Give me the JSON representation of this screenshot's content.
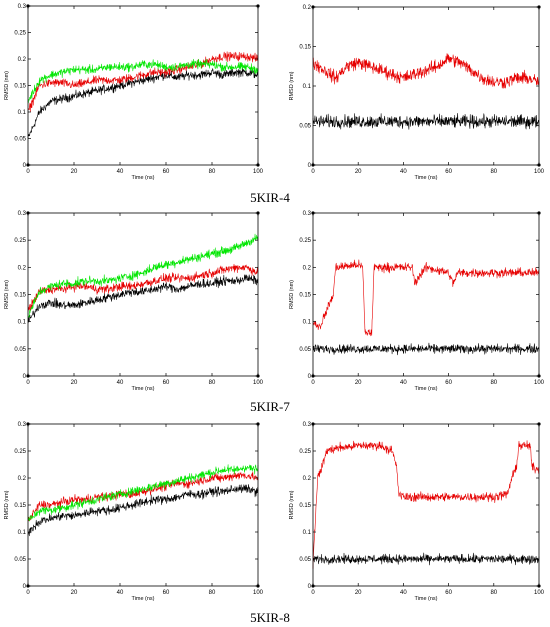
{
  "captions": [
    "5KIR-4",
    "5KIR-7",
    "5KIR-8"
  ],
  "colors": {
    "black": "#000000",
    "red": "#e60000",
    "green": "#00e600"
  },
  "chart_data": [
    {
      "type": "line",
      "xlabel": "Time (ns)",
      "ylabel": "RMSD (nm)",
      "xlim": [
        0,
        100
      ],
      "ylim": [
        0,
        0.3
      ],
      "xticks": [
        0,
        20,
        40,
        60,
        80,
        100
      ],
      "yticks": [
        0,
        0.05,
        0.1,
        0.15,
        0.2,
        0.25,
        0.3
      ],
      "series": [
        {
          "color": "black",
          "x": [
            0,
            5,
            10,
            15,
            20,
            25,
            30,
            35,
            40,
            45,
            50,
            55,
            60,
            65,
            70,
            75,
            80,
            85,
            90,
            95,
            100
          ],
          "y": [
            0.05,
            0.1,
            0.12,
            0.125,
            0.13,
            0.135,
            0.14,
            0.145,
            0.15,
            0.155,
            0.16,
            0.165,
            0.17,
            0.165,
            0.17,
            0.17,
            0.175,
            0.17,
            0.175,
            0.175,
            0.17
          ],
          "noise": 0.012
        },
        {
          "color": "red",
          "x": [
            0,
            5,
            10,
            15,
            20,
            25,
            30,
            35,
            40,
            45,
            50,
            55,
            60,
            65,
            70,
            75,
            80,
            85,
            90,
            95,
            100
          ],
          "y": [
            0.1,
            0.15,
            0.155,
            0.155,
            0.15,
            0.155,
            0.16,
            0.16,
            0.16,
            0.165,
            0.17,
            0.175,
            0.175,
            0.18,
            0.185,
            0.19,
            0.2,
            0.205,
            0.205,
            0.205,
            0.2
          ],
          "noise": 0.012
        },
        {
          "color": "green",
          "x": [
            0,
            5,
            10,
            15,
            20,
            25,
            30,
            35,
            40,
            45,
            50,
            55,
            60,
            65,
            70,
            75,
            80,
            85,
            90,
            95,
            100
          ],
          "y": [
            0.12,
            0.16,
            0.17,
            0.175,
            0.18,
            0.18,
            0.18,
            0.185,
            0.185,
            0.185,
            0.19,
            0.19,
            0.185,
            0.185,
            0.19,
            0.19,
            0.19,
            0.185,
            0.185,
            0.185,
            0.18
          ],
          "noise": 0.012
        }
      ]
    },
    {
      "type": "line",
      "xlabel": "Time (ns)",
      "ylabel": "RMSD (nm)",
      "xlim": [
        0,
        100
      ],
      "ylim": [
        0,
        0.2
      ],
      "xticks": [
        0,
        20,
        40,
        60,
        80,
        100
      ],
      "yticks": [
        0,
        0.05,
        0.1,
        0.15,
        0.2
      ],
      "series": [
        {
          "color": "black",
          "x": [
            0,
            10,
            20,
            30,
            40,
            50,
            60,
            70,
            80,
            90,
            100
          ],
          "y": [
            0.055,
            0.055,
            0.055,
            0.055,
            0.055,
            0.055,
            0.055,
            0.055,
            0.055,
            0.055,
            0.055
          ],
          "noise": 0.012
        },
        {
          "color": "red",
          "x": [
            0,
            5,
            10,
            15,
            20,
            25,
            30,
            35,
            40,
            45,
            50,
            55,
            60,
            65,
            70,
            75,
            80,
            85,
            90,
            95,
            100
          ],
          "y": [
            0.13,
            0.12,
            0.11,
            0.125,
            0.13,
            0.125,
            0.12,
            0.115,
            0.11,
            0.115,
            0.12,
            0.125,
            0.135,
            0.13,
            0.12,
            0.11,
            0.105,
            0.105,
            0.11,
            0.11,
            0.105
          ],
          "noise": 0.012
        }
      ]
    },
    {
      "type": "line",
      "xlabel": "Time (ns)",
      "ylabel": "RMSD (nm)",
      "xlim": [
        0,
        100
      ],
      "ylim": [
        0,
        0.3
      ],
      "xticks": [
        0,
        20,
        40,
        60,
        80,
        100
      ],
      "yticks": [
        0,
        0.05,
        0.1,
        0.15,
        0.2,
        0.25,
        0.3
      ],
      "series": [
        {
          "color": "black",
          "x": [
            0,
            5,
            10,
            15,
            20,
            25,
            30,
            35,
            40,
            45,
            50,
            55,
            60,
            65,
            70,
            75,
            80,
            85,
            90,
            95,
            100
          ],
          "y": [
            0.1,
            0.13,
            0.135,
            0.13,
            0.13,
            0.135,
            0.14,
            0.145,
            0.15,
            0.155,
            0.155,
            0.16,
            0.165,
            0.16,
            0.165,
            0.17,
            0.17,
            0.175,
            0.175,
            0.18,
            0.175
          ],
          "noise": 0.012
        },
        {
          "color": "red",
          "x": [
            0,
            5,
            10,
            15,
            20,
            25,
            30,
            35,
            40,
            45,
            50,
            55,
            60,
            65,
            70,
            75,
            80,
            85,
            90,
            95,
            100
          ],
          "y": [
            0.12,
            0.155,
            0.16,
            0.16,
            0.165,
            0.165,
            0.16,
            0.16,
            0.165,
            0.165,
            0.17,
            0.175,
            0.18,
            0.18,
            0.18,
            0.185,
            0.19,
            0.195,
            0.2,
            0.2,
            0.19
          ],
          "noise": 0.012
        },
        {
          "color": "green",
          "x": [
            0,
            5,
            10,
            15,
            20,
            25,
            30,
            35,
            40,
            45,
            50,
            55,
            60,
            65,
            70,
            75,
            80,
            85,
            90,
            95,
            100
          ],
          "y": [
            0.11,
            0.155,
            0.165,
            0.17,
            0.17,
            0.175,
            0.175,
            0.175,
            0.18,
            0.185,
            0.19,
            0.2,
            0.205,
            0.21,
            0.215,
            0.22,
            0.225,
            0.23,
            0.235,
            0.245,
            0.255
          ],
          "noise": 0.012
        }
      ]
    },
    {
      "type": "line",
      "xlabel": "Time (ns)",
      "ylabel": "RMSD (nm)",
      "xlim": [
        0,
        100
      ],
      "ylim": [
        0,
        0.3
      ],
      "xticks": [
        0,
        20,
        40,
        60,
        80,
        100
      ],
      "yticks": [
        0,
        0.05,
        0.1,
        0.15,
        0.2,
        0.25,
        0.3
      ],
      "series": [
        {
          "color": "black",
          "x": [
            0,
            10,
            20,
            30,
            40,
            50,
            60,
            70,
            80,
            90,
            100
          ],
          "y": [
            0.05,
            0.05,
            0.05,
            0.05,
            0.05,
            0.05,
            0.05,
            0.05,
            0.05,
            0.05,
            0.05
          ],
          "noise": 0.012
        },
        {
          "color": "red",
          "x": [
            0,
            3,
            6,
            9,
            10,
            20,
            22,
            23,
            26,
            27,
            40,
            44,
            45,
            48,
            50,
            60,
            62,
            64,
            70,
            80,
            90,
            100
          ],
          "y": [
            0.1,
            0.09,
            0.12,
            0.15,
            0.2,
            0.205,
            0.2,
            0.08,
            0.08,
            0.2,
            0.2,
            0.2,
            0.17,
            0.19,
            0.2,
            0.19,
            0.17,
            0.19,
            0.19,
            0.19,
            0.19,
            0.19
          ],
          "noise": 0.012
        }
      ]
    },
    {
      "type": "line",
      "xlabel": "Time (ns)",
      "ylabel": "RMSD (nm)",
      "xlim": [
        0,
        100
      ],
      "ylim": [
        0,
        0.3
      ],
      "xticks": [
        0,
        20,
        40,
        60,
        80,
        100
      ],
      "yticks": [
        0,
        0.05,
        0.1,
        0.15,
        0.2,
        0.25,
        0.3
      ],
      "series": [
        {
          "color": "black",
          "x": [
            0,
            5,
            10,
            15,
            20,
            25,
            30,
            35,
            40,
            45,
            50,
            55,
            60,
            65,
            70,
            75,
            80,
            85,
            90,
            95,
            100
          ],
          "y": [
            0.1,
            0.12,
            0.125,
            0.13,
            0.13,
            0.135,
            0.14,
            0.14,
            0.145,
            0.15,
            0.155,
            0.16,
            0.16,
            0.165,
            0.17,
            0.17,
            0.175,
            0.175,
            0.18,
            0.18,
            0.175
          ],
          "noise": 0.012
        },
        {
          "color": "red",
          "x": [
            0,
            5,
            10,
            15,
            20,
            25,
            30,
            35,
            40,
            45,
            50,
            55,
            60,
            65,
            70,
            75,
            80,
            85,
            90,
            95,
            100
          ],
          "y": [
            0.12,
            0.15,
            0.15,
            0.155,
            0.16,
            0.16,
            0.165,
            0.165,
            0.17,
            0.17,
            0.175,
            0.18,
            0.185,
            0.19,
            0.19,
            0.195,
            0.2,
            0.2,
            0.205,
            0.205,
            0.2
          ],
          "noise": 0.012
        },
        {
          "color": "green",
          "x": [
            0,
            5,
            10,
            15,
            20,
            25,
            30,
            35,
            40,
            45,
            50,
            55,
            60,
            65,
            70,
            75,
            80,
            85,
            90,
            95,
            100
          ],
          "y": [
            0.12,
            0.14,
            0.14,
            0.145,
            0.15,
            0.155,
            0.16,
            0.165,
            0.17,
            0.175,
            0.18,
            0.185,
            0.19,
            0.195,
            0.2,
            0.205,
            0.21,
            0.215,
            0.215,
            0.22,
            0.215
          ],
          "noise": 0.012
        }
      ]
    },
    {
      "type": "line",
      "xlabel": "Time (ns)",
      "ylabel": "RMSD (nm)",
      "xlim": [
        0,
        100
      ],
      "ylim": [
        0,
        0.3
      ],
      "xticks": [
        0,
        20,
        40,
        60,
        80,
        100
      ],
      "yticks": [
        0,
        0.05,
        0.1,
        0.15,
        0.2,
        0.25,
        0.3
      ],
      "series": [
        {
          "color": "black",
          "x": [
            0,
            10,
            20,
            30,
            40,
            50,
            60,
            70,
            80,
            90,
            100
          ],
          "y": [
            0.05,
            0.05,
            0.05,
            0.05,
            0.05,
            0.05,
            0.05,
            0.05,
            0.05,
            0.05,
            0.05
          ],
          "noise": 0.012
        },
        {
          "color": "red",
          "x": [
            0,
            2,
            4,
            6,
            10,
            20,
            30,
            35,
            37,
            38,
            40,
            50,
            60,
            70,
            80,
            86,
            88,
            90,
            91,
            93,
            96,
            97,
            100
          ],
          "y": [
            0.04,
            0.2,
            0.22,
            0.25,
            0.255,
            0.26,
            0.26,
            0.25,
            0.22,
            0.17,
            0.165,
            0.165,
            0.165,
            0.165,
            0.165,
            0.17,
            0.2,
            0.22,
            0.26,
            0.26,
            0.26,
            0.22,
            0.215
          ],
          "noise": 0.012
        }
      ]
    }
  ]
}
